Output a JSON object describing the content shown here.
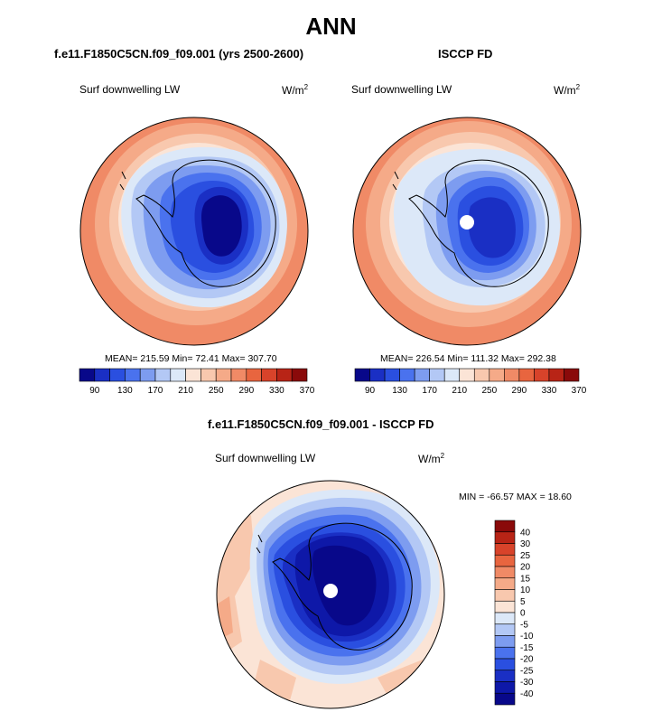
{
  "title": "ANN",
  "panels": [
    {
      "id": "model",
      "title": "f.e11.F1850C5CN.f09_f09.001 (yrs 2500-2600)",
      "variable": "Surf downwelling LW",
      "units_base": "W/m",
      "units_exp": "2",
      "stats": "MEAN= 215.59  Min=  72.41  Max= 307.70"
    },
    {
      "id": "obs",
      "title": "ISCCP FD",
      "variable": "Surf downwelling LW",
      "units_base": "W/m",
      "units_exp": "2",
      "stats": "MEAN= 226.54  Min= 111.32  Max= 292.38"
    },
    {
      "id": "diff",
      "title": "f.e11.F1850C5CN.f09_f09.001 - ISCCP FD",
      "variable": "Surf downwelling LW",
      "units_base": "W/m",
      "units_exp": "2",
      "stats": "MIN = -66.57 MAX =  18.60"
    }
  ],
  "colorbars": {
    "absolute": {
      "colors": [
        "#08088a",
        "#1a2fc4",
        "#2a4fe0",
        "#4a72ee",
        "#7d9cf0",
        "#b3c8f5",
        "#dce8f8",
        "#fbe4d6",
        "#f8c8ae",
        "#f5aa88",
        "#f08a66",
        "#e8653f",
        "#d8432a",
        "#b82416",
        "#8a0a0a"
      ],
      "labels": [
        "90",
        "130",
        "170",
        "210",
        "250",
        "290",
        "330",
        "370"
      ]
    },
    "difference": {
      "colors": [
        "#8a0a0a",
        "#b82416",
        "#d8432a",
        "#e8653f",
        "#f08a66",
        "#f5aa88",
        "#f8c8ae",
        "#fbe4d6",
        "#dce8f8",
        "#b3c8f5",
        "#7d9cf0",
        "#4a72ee",
        "#2a4fe0",
        "#1a2fc4",
        "#0e18a8",
        "#08088a"
      ],
      "labels": [
        "40",
        "30",
        "25",
        "20",
        "15",
        "10",
        "5",
        "0",
        "-5",
        "-10",
        "-15",
        "-20",
        "-25",
        "-30",
        "-40"
      ]
    }
  }
}
